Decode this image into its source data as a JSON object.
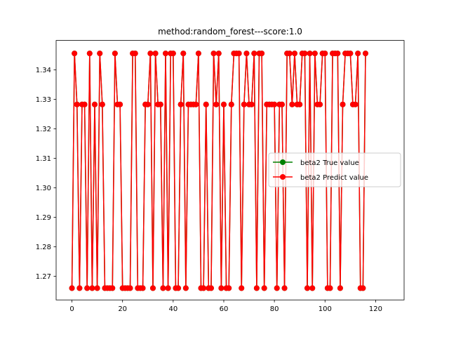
{
  "chart_data": {
    "type": "line",
    "title": "method:random_forest---score:1.0",
    "xlabel": "",
    "ylabel": "",
    "xlim": [
      -6.25,
      131.25
    ],
    "ylim": [
      1.262,
      1.35
    ],
    "x_ticks": [
      0,
      20,
      40,
      60,
      80,
      100,
      120
    ],
    "x_tick_labels": [
      "0",
      "20",
      "40",
      "60",
      "80",
      "100",
      "120"
    ],
    "y_ticks": [
      1.27,
      1.28,
      1.29,
      1.3,
      1.31,
      1.32,
      1.33,
      1.34
    ],
    "y_tick_labels": [
      "1.27",
      "1.28",
      "1.29",
      "1.30",
      "1.31",
      "1.32",
      "1.33",
      "1.34"
    ],
    "grid": false,
    "legend_position": "center-right",
    "levels": {
      "L": 1.266,
      "M": 1.3283,
      "H": 1.3456
    },
    "series": [
      {
        "name": "beta2 True value",
        "color": "#008000",
        "marker": "circle",
        "pattern": "LHMLMMLHLMLHMLLLLHMMLLLLHHLLLMMHLHMMLHLHHLLMHLMMMMHLLMLLHMHLMLLMHHHLMHMMHLHHLMMMMLMMLHHMHMMHHLHLHMMHHLLHHHLMHHHMMHLLH"
      },
      {
        "name": "beta2 Predict value",
        "color": "#ff0000",
        "marker": "circle",
        "pattern": "LHMLMMLHLMLHMLLLLHMMLLLLHHLLLMMHLHMMLHLHHLLMHLMMMMHLLMLLHMHLMLLMHHHLMHMMHLHHLMMMMLMMLHHMHMMHHLHLHMMHHLLHHHLMHHHMMHLLH"
      }
    ]
  }
}
